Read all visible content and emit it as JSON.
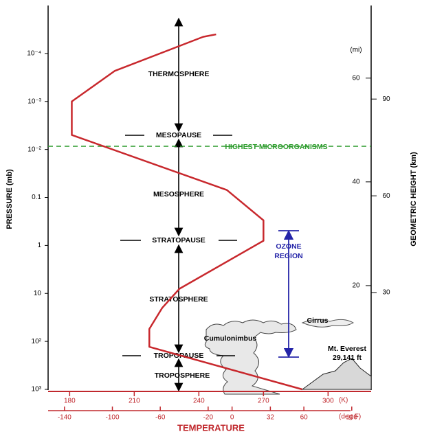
{
  "chart_data": {
    "type": "line",
    "ylabel": "PRESSURE (mb)",
    "xlabel": "TEMPERATURE",
    "log_y": true,
    "ylim": [
      1000,
      1e-05
    ],
    "yticks": [
      {
        "value": 0.0001,
        "label": "10⁻⁴"
      },
      {
        "value": 0.001,
        "label": "10⁻³"
      },
      {
        "value": 0.01,
        "label": "10⁻²"
      },
      0.1,
      1,
      10,
      {
        "value": 100,
        "label": "10²"
      },
      {
        "value": 1000,
        "label": "10³"
      }
    ],
    "xlim": [
      170,
      320
    ],
    "xticks": [
      180,
      210,
      240,
      270,
      300
    ],
    "xunit": "(K)",
    "x2lim": [
      -153.7,
      116.2
    ],
    "x2ticks": [
      -140,
      -100,
      -60,
      -20,
      0,
      32,
      60,
      100
    ],
    "x2unit": "(deg F)",
    "y2label": "GEOMETRIC HEIGHT (km)",
    "y2lim": [
      0,
      119
    ],
    "y2ticks": [
      30,
      60,
      90
    ],
    "y3unit": "(mi)",
    "y3lim": [
      0,
      74
    ],
    "y3ticks": [
      20,
      40,
      60
    ],
    "axis_color": "#c0282d",
    "series": [
      {
        "color": "#c8282d",
        "x": [
          288,
          217,
          217,
          223,
          231,
          270,
          270,
          253,
          181,
          181,
          201,
          242,
          248
        ],
        "values": [
          1000,
          130,
          55,
          20,
          8,
          0.8,
          0.3,
          0.07,
          0.005,
          0.001,
          0.00023,
          4.5e-05,
          4e-05
        ]
      }
    ],
    "annotations": [
      "THERMOSPHERE",
      "MESOPAUSE",
      "HIGHEST MICROORGANISMS",
      "MESOSPHERE",
      "STRATOPAUSE",
      "OZONE",
      "REGION",
      "STRATOSPHERE",
      "TROPOPAUSE",
      "TROPOSPHERE",
      "Cirrus",
      "Cumulonimbus",
      "Mt. Everest",
      "29,141 ft"
    ]
  }
}
